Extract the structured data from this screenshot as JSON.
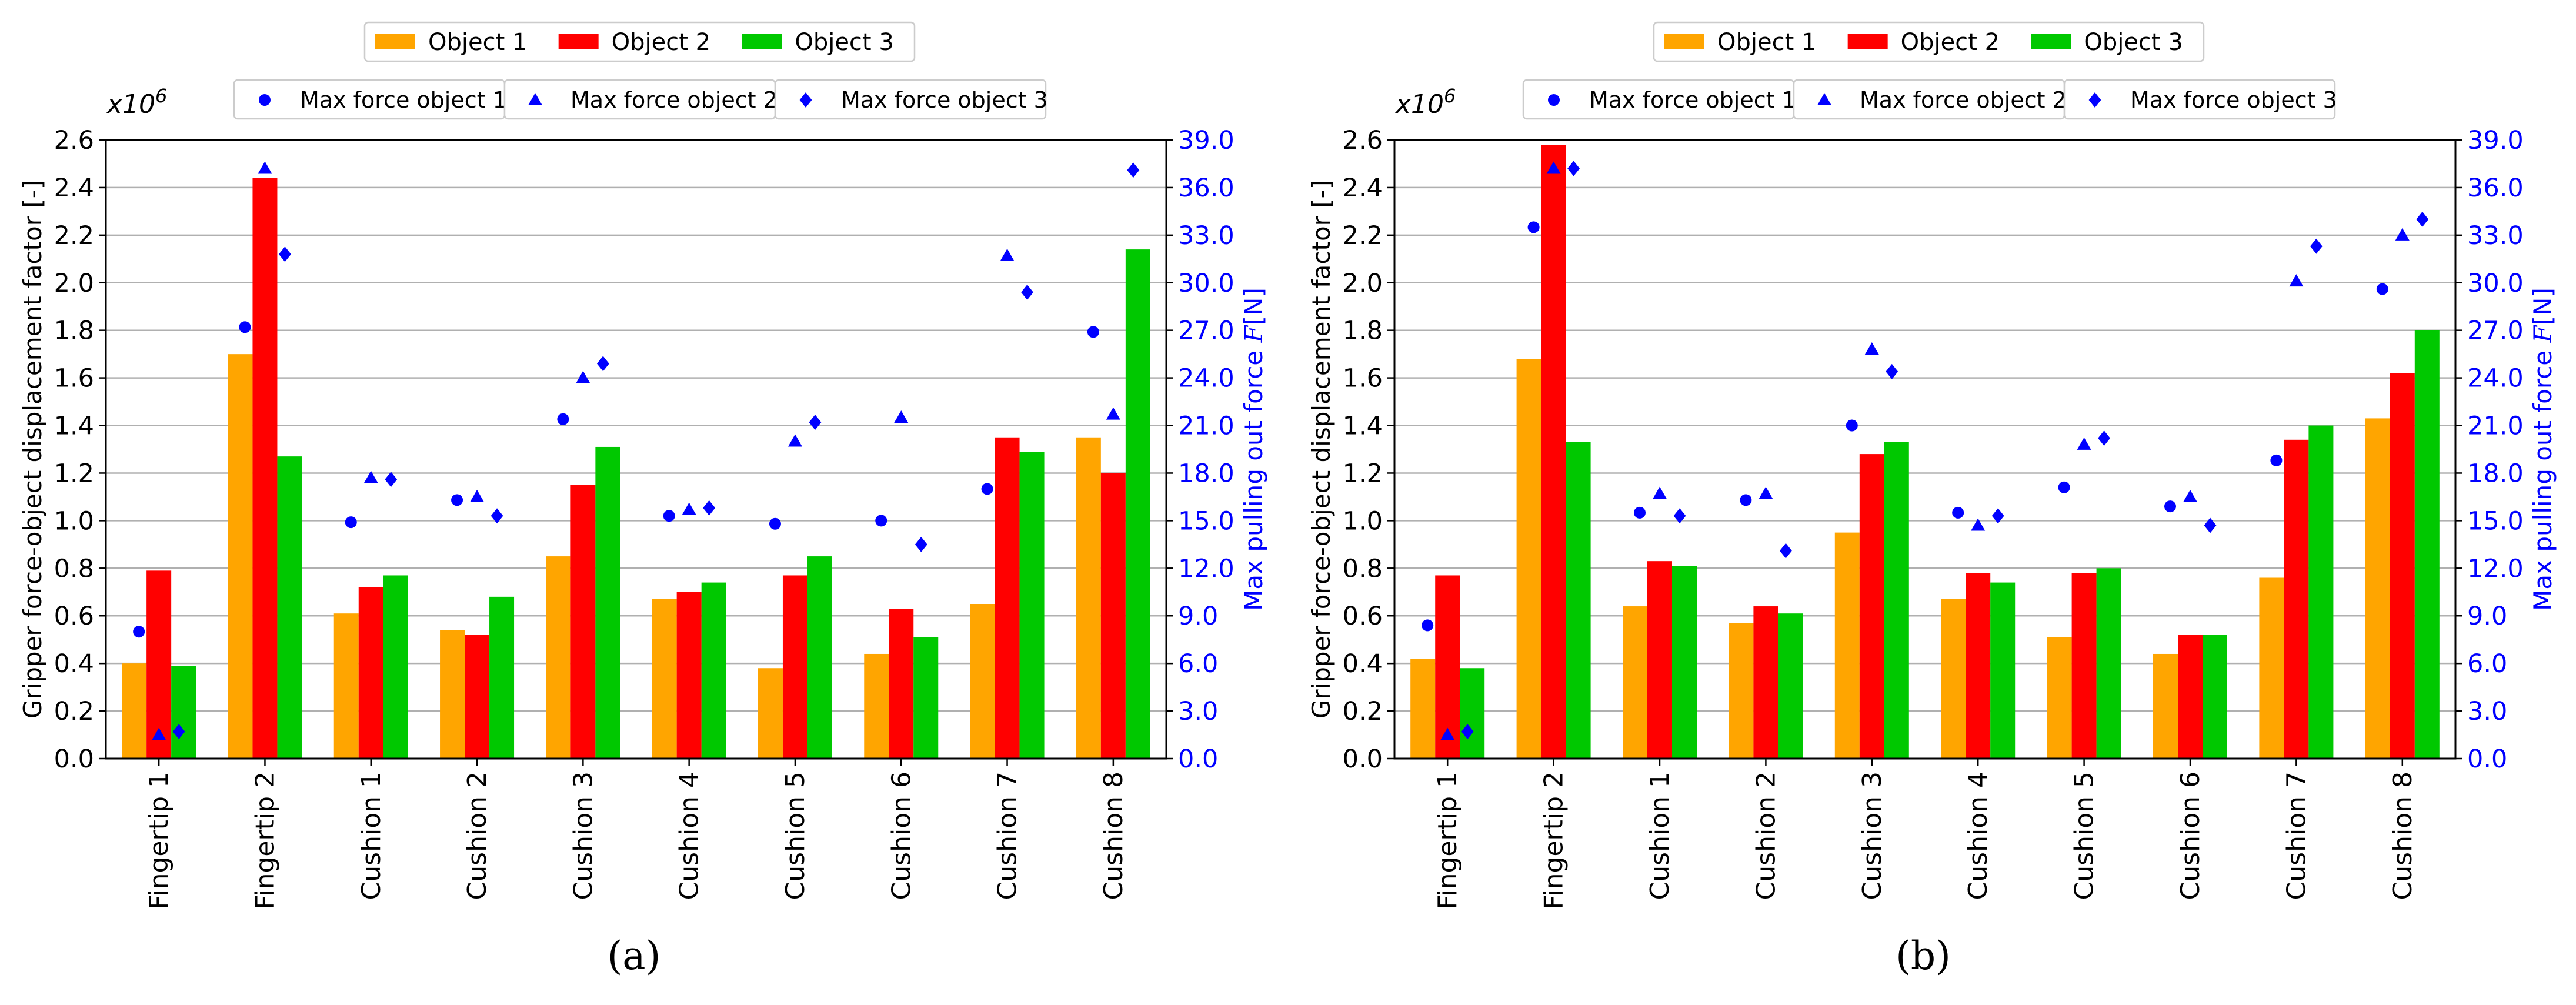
{
  "figure": {
    "panel_labels": [
      "(a)",
      "(b)"
    ]
  },
  "chart_data": [
    {
      "type": "bar",
      "panel_label": "(a)",
      "categories": [
        "Fingertip 1",
        "Fingertip 2",
        "Cushion 1",
        "Cushion 2",
        "Cushion 3",
        "Cushion 4",
        "Cushion 5",
        "Cushion 6",
        "Cushion 7",
        "Cushion 8"
      ],
      "ylabel": "Gripper force-object displacement factor [-]",
      "y_multiplier_label": "x10",
      "y_multiplier_exp": "6",
      "ylim": [
        0,
        2.6
      ],
      "yticks": [
        "0.0",
        "0.2",
        "0.4",
        "0.6",
        "0.8",
        "1.0",
        "1.2",
        "1.4",
        "1.6",
        "1.8",
        "2.0",
        "2.2",
        "2.4",
        "2.6"
      ],
      "y2label_prefix": "Max pulling out force ",
      "y2label_symbol": "F",
      "y2label_suffix": "[N]",
      "y2lim": [
        0,
        39
      ],
      "y2ticks": [
        "0.0",
        "3.0",
        "6.0",
        "9.0",
        "12.0",
        "15.0",
        "18.0",
        "21.0",
        "24.0",
        "27.0",
        "30.0",
        "33.0",
        "36.0",
        "39.0"
      ],
      "grid": true,
      "legend_bars_position": "top-center",
      "legend_markers_position": "top-center",
      "series": [
        {
          "name": "Object 1",
          "color": "#ffa500",
          "values": [
            0.4,
            1.7,
            0.61,
            0.54,
            0.85,
            0.67,
            0.38,
            0.44,
            0.65,
            1.35
          ]
        },
        {
          "name": "Object 2",
          "color": "#ff0000",
          "values": [
            0.79,
            2.44,
            0.72,
            0.52,
            1.15,
            0.7,
            0.77,
            0.63,
            1.35,
            1.2
          ]
        },
        {
          "name": "Object 3",
          "color": "#00c800",
          "values": [
            0.39,
            1.27,
            0.77,
            0.68,
            1.31,
            0.74,
            0.85,
            0.51,
            1.29,
            2.14
          ]
        }
      ],
      "marker_series": [
        {
          "name": "Max force object 1",
          "marker": "circle",
          "color": "#0000ff",
          "values": [
            8.0,
            27.2,
            14.9,
            16.3,
            21.4,
            15.3,
            14.8,
            15.0,
            17.0,
            26.9
          ]
        },
        {
          "name": "Max force object 2",
          "marker": "triangle",
          "color": "#0000ff",
          "values": [
            1.5,
            37.2,
            17.7,
            16.5,
            24.0,
            15.7,
            20.0,
            21.5,
            31.7,
            21.7
          ]
        },
        {
          "name": "Max force object 3",
          "marker": "diamond",
          "color": "#0000ff",
          "values": [
            1.7,
            31.8,
            17.6,
            15.3,
            24.9,
            15.8,
            21.2,
            13.5,
            29.4,
            37.1
          ]
        }
      ]
    },
    {
      "type": "bar",
      "panel_label": "(b)",
      "categories": [
        "Fingertip 1",
        "Fingertip 2",
        "Cushion 1",
        "Cushion 2",
        "Cushion 3",
        "Cushion 4",
        "Cushion 5",
        "Cushion 6",
        "Cushion 7",
        "Cushion 8"
      ],
      "ylabel": "Gripper force-object displacement factor [-]",
      "y_multiplier_label": "x10",
      "y_multiplier_exp": "6",
      "ylim": [
        0,
        2.6
      ],
      "yticks": [
        "0.0",
        "0.2",
        "0.4",
        "0.6",
        "0.8",
        "1.0",
        "1.2",
        "1.4",
        "1.6",
        "1.8",
        "2.0",
        "2.2",
        "2.4",
        "2.6"
      ],
      "y2label_prefix": "Max pulling out force ",
      "y2label_symbol": "F",
      "y2label_suffix": "[N]",
      "y2lim": [
        0,
        39
      ],
      "y2ticks": [
        "0.0",
        "3.0",
        "6.0",
        "9.0",
        "12.0",
        "15.0",
        "18.0",
        "21.0",
        "24.0",
        "27.0",
        "30.0",
        "33.0",
        "36.0",
        "39.0"
      ],
      "grid": true,
      "legend_bars_position": "top-center",
      "legend_markers_position": "top-center",
      "series": [
        {
          "name": "Object 1",
          "color": "#ffa500",
          "values": [
            0.42,
            1.68,
            0.64,
            0.57,
            0.95,
            0.67,
            0.51,
            0.44,
            0.76,
            1.43
          ]
        },
        {
          "name": "Object 2",
          "color": "#ff0000",
          "values": [
            0.77,
            2.58,
            0.83,
            0.64,
            1.28,
            0.78,
            0.78,
            0.52,
            1.34,
            1.62
          ]
        },
        {
          "name": "Object 3",
          "color": "#00c800",
          "values": [
            0.38,
            1.33,
            0.81,
            0.61,
            1.33,
            0.74,
            0.8,
            0.52,
            1.4,
            1.8
          ]
        }
      ],
      "marker_series": [
        {
          "name": "Max force object 1",
          "marker": "circle",
          "color": "#0000ff",
          "values": [
            8.4,
            33.5,
            15.5,
            16.3,
            21.0,
            15.5,
            17.1,
            15.9,
            18.8,
            29.6
          ]
        },
        {
          "name": "Max force object 2",
          "marker": "triangle",
          "color": "#0000ff",
          "values": [
            1.5,
            37.2,
            16.7,
            16.7,
            25.8,
            14.7,
            19.8,
            16.5,
            30.1,
            33.0
          ]
        },
        {
          "name": "Max force object 3",
          "marker": "diamond",
          "color": "#0000ff",
          "values": [
            1.7,
            37.2,
            15.3,
            13.1,
            24.4,
            15.3,
            20.2,
            14.7,
            32.3,
            34.0
          ]
        }
      ]
    }
  ]
}
